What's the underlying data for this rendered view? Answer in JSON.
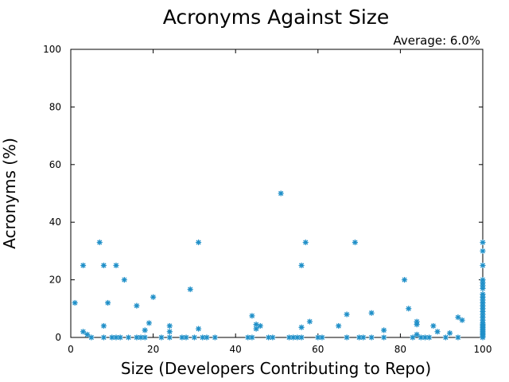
{
  "chart_data": {
    "type": "scatter",
    "title": "Acronyms Against Size",
    "annotation": "Average: 6.0%",
    "xlabel": "Size (Developers Contributing to Repo)",
    "ylabel": "Acronyms (%)",
    "xlim": [
      0,
      100
    ],
    "ylim": [
      0,
      100
    ],
    "xticks": [
      0,
      20,
      40,
      60,
      80,
      100
    ],
    "yticks": [
      0,
      20,
      40,
      60,
      80,
      100
    ],
    "grid": false,
    "marker_color": "#1f8fc8",
    "series": [
      {
        "points": [
          [
            1,
            12
          ],
          [
            3,
            25
          ],
          [
            3,
            2
          ],
          [
            4,
            1
          ],
          [
            5,
            0
          ],
          [
            7,
            33
          ],
          [
            8,
            25
          ],
          [
            8,
            4
          ],
          [
            8,
            0
          ],
          [
            9,
            12
          ],
          [
            10,
            0
          ],
          [
            11,
            25
          ],
          [
            11,
            0
          ],
          [
            12,
            0
          ],
          [
            13,
            20
          ],
          [
            14,
            0
          ],
          [
            16,
            11
          ],
          [
            16,
            0
          ],
          [
            17,
            0
          ],
          [
            18,
            2.5
          ],
          [
            18,
            0
          ],
          [
            19,
            5
          ],
          [
            20,
            14
          ],
          [
            22,
            0
          ],
          [
            24,
            4
          ],
          [
            24,
            2
          ],
          [
            24,
            0
          ],
          [
            27,
            0
          ],
          [
            28,
            0
          ],
          [
            29,
            16.7
          ],
          [
            30,
            0
          ],
          [
            31,
            33
          ],
          [
            31,
            3
          ],
          [
            32,
            0
          ],
          [
            33,
            0
          ],
          [
            35,
            0
          ],
          [
            43,
            0
          ],
          [
            44,
            7.5
          ],
          [
            44,
            0
          ],
          [
            45,
            4.5
          ],
          [
            45,
            3
          ],
          [
            46,
            4
          ],
          [
            48,
            0
          ],
          [
            49,
            0
          ],
          [
            51,
            50
          ],
          [
            53,
            0
          ],
          [
            54,
            0
          ],
          [
            55,
            0
          ],
          [
            56,
            25
          ],
          [
            56,
            3.5
          ],
          [
            56,
            0
          ],
          [
            57,
            33
          ],
          [
            58,
            5.5
          ],
          [
            60,
            0
          ],
          [
            61,
            0
          ],
          [
            65,
            4
          ],
          [
            67,
            8
          ],
          [
            67,
            0
          ],
          [
            69,
            33
          ],
          [
            70,
            0
          ],
          [
            71,
            0
          ],
          [
            73,
            8.5
          ],
          [
            73,
            0
          ],
          [
            76,
            2.5
          ],
          [
            76,
            0
          ],
          [
            81,
            20
          ],
          [
            82,
            10
          ],
          [
            83,
            0
          ],
          [
            84,
            5.5
          ],
          [
            84,
            4.5
          ],
          [
            84,
            1
          ],
          [
            85,
            0
          ],
          [
            86,
            0
          ],
          [
            87,
            0
          ],
          [
            88,
            4
          ],
          [
            89,
            2
          ],
          [
            91,
            0
          ],
          [
            92,
            1.5
          ],
          [
            94,
            7
          ],
          [
            94,
            0
          ],
          [
            95,
            6
          ],
          [
            100,
            33
          ],
          [
            100,
            30
          ],
          [
            100,
            25
          ],
          [
            100,
            20
          ],
          [
            100,
            19
          ],
          [
            100,
            18
          ],
          [
            100,
            17
          ],
          [
            100,
            15
          ],
          [
            100,
            14
          ],
          [
            100,
            13
          ],
          [
            100,
            12
          ],
          [
            100,
            11
          ],
          [
            100,
            10
          ],
          [
            100,
            9
          ],
          [
            100,
            8
          ],
          [
            100,
            7
          ],
          [
            100,
            6
          ],
          [
            100,
            5
          ],
          [
            100,
            4.5
          ],
          [
            100,
            4
          ],
          [
            100,
            3.5
          ],
          [
            100,
            3
          ],
          [
            100,
            2.5
          ],
          [
            100,
            2
          ],
          [
            100,
            1.5
          ],
          [
            100,
            1
          ],
          [
            100,
            0.5
          ],
          [
            100,
            0
          ]
        ]
      }
    ]
  }
}
